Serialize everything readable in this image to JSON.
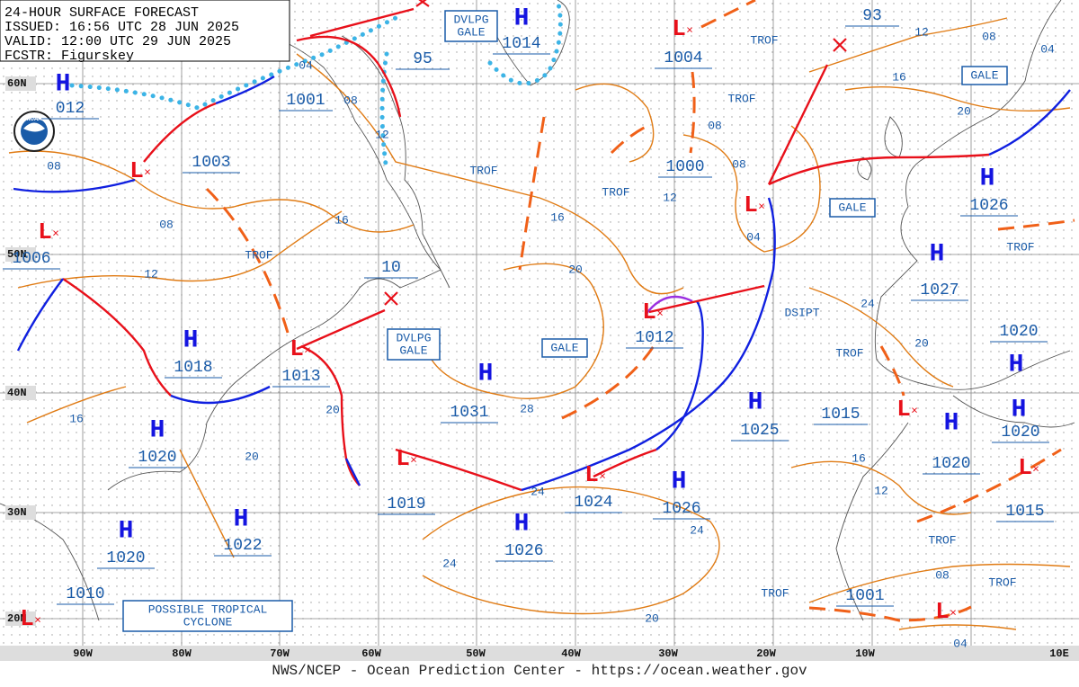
{
  "header": {
    "lines": [
      "24-HOUR SURFACE FORECAST",
      "ISSUED: 16:56 UTC 28 JUN 2025",
      "VALID: 12:00 UTC 29 JUN 2025",
      "FCSTR: Figurskey"
    ]
  },
  "logo": "NOAA",
  "lat_labels": [
    "60N",
    "50N",
    "40N",
    "30N",
    "20N"
  ],
  "lon_labels": [
    "90W",
    "80W",
    "70W",
    "60W",
    "50W",
    "40W",
    "30W",
    "20W",
    "10W",
    "10E"
  ],
  "centers": [
    {
      "symbol": "H",
      "pressure": "1014"
    },
    {
      "symbol": "H",
      "pressure": "012"
    },
    {
      "symbol": "L",
      "pressure": "1003"
    },
    {
      "symbol": "L",
      "pressure": "1006"
    },
    {
      "symbol": "L",
      "pressure": "1004"
    },
    {
      "symbol": "L",
      "pressure": "1013"
    },
    {
      "symbol": "L",
      "pressure": "1012"
    },
    {
      "symbol": "L",
      "pressure": "1019"
    },
    {
      "symbol": "L",
      "pressure": "1024"
    },
    {
      "symbol": "L",
      "pressure": "1015"
    },
    {
      "symbol": "L",
      "pressure": "1001"
    },
    {
      "symbol": "L",
      "pressure": "1010"
    },
    {
      "symbol": "H",
      "pressure": "1018"
    },
    {
      "symbol": "H",
      "pressure": "1031"
    },
    {
      "symbol": "H",
      "pressure": "1020"
    },
    {
      "symbol": "H",
      "pressure": "1025"
    },
    {
      "symbol": "H",
      "pressure": "1026"
    },
    {
      "symbol": "H",
      "pressure": "1027"
    },
    {
      "symbol": "H",
      "pressure": "1020"
    },
    {
      "symbol": "H",
      "pressure": "1020"
    },
    {
      "symbol": "H",
      "pressure": "1020"
    },
    {
      "symbol": "H",
      "pressure": "1026"
    },
    {
      "symbol": "H",
      "pressure": "1026"
    },
    {
      "symbol": "H",
      "pressure": "1020"
    },
    {
      "symbol": "H",
      "pressure": "1022"
    }
  ],
  "lone_lows": [
    "L",
    "L"
  ],
  "pressure_labels": [
    "1001",
    "1000",
    "95",
    "10",
    "93",
    "1015"
  ],
  "isobar_labels": [
    "04",
    "08",
    "12",
    "08",
    "08",
    "12",
    "16",
    "16",
    "20",
    "12",
    "08",
    "08",
    "04",
    "12",
    "08",
    "04",
    "16",
    "20",
    "24",
    "20",
    "16",
    "12",
    "08",
    "04",
    "20",
    "28",
    "24",
    "24",
    "24",
    "20",
    "20",
    "16"
  ],
  "annotations": [
    "TROF",
    "TROF",
    "TROF",
    "TROF",
    "TROF",
    "TROF",
    "TROF",
    "TROF",
    "TROF",
    "TROF",
    "DSIPT"
  ],
  "boxed_labels": [
    {
      "lines": [
        "DVLPG",
        "GALE"
      ]
    },
    {
      "lines": [
        "GALE"
      ]
    },
    {
      "lines": [
        "GALE"
      ]
    },
    {
      "lines": [
        "DVLPG",
        "GALE"
      ]
    },
    {
      "lines": [
        "GALE"
      ]
    },
    {
      "lines": [
        "POSSIBLE TROPICAL",
        "CYCLONE"
      ]
    }
  ],
  "footer": "NWS/NCEP - Ocean Prediction Center - https://ocean.weather.gov"
}
